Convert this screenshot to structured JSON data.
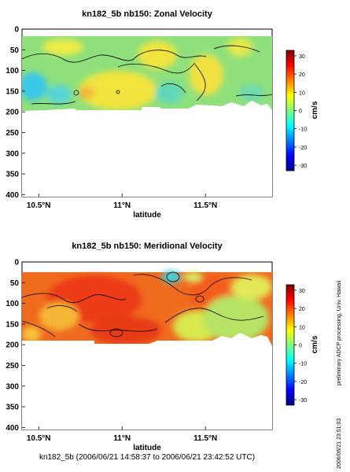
{
  "chart_data": [
    {
      "type": "heatmap",
      "title": "kn182_5b nb150: Zonal Velocity",
      "xlabel": "latitude",
      "ylabel": "",
      "x_ticks": [
        "10.5°N",
        "11°N",
        "11.5°N"
      ],
      "x_tick_values": [
        10.5,
        11.0,
        11.5
      ],
      "xlim": [
        10.4,
        11.9
      ],
      "y_ticks": [
        0,
        50,
        100,
        150,
        200,
        250,
        300,
        350,
        400
      ],
      "ylim": [
        0,
        405
      ],
      "y_reversed": true,
      "colorbar_label": "cm/s",
      "colorbar_ticks": [
        30,
        20,
        10,
        0,
        -10,
        -20,
        -30
      ],
      "clim": [
        -33,
        33
      ],
      "grid": false,
      "data_coverage_depth": [
        25,
        200
      ]
    },
    {
      "type": "heatmap",
      "title": "kn182_5b nb150: Meridional Velocity",
      "xlabel": "latitude",
      "ylabel": "",
      "x_ticks": [
        "10.5°N",
        "11°N",
        "11.5°N"
      ],
      "x_tick_values": [
        10.5,
        11.0,
        11.5
      ],
      "xlim": [
        10.4,
        11.9
      ],
      "y_ticks": [
        0,
        50,
        100,
        150,
        200,
        250,
        300,
        350,
        400
      ],
      "ylim": [
        0,
        405
      ],
      "y_reversed": true,
      "colorbar_label": "cm/s",
      "colorbar_ticks": [
        30,
        20,
        10,
        0,
        -10,
        -20,
        -30
      ],
      "clim": [
        -33,
        33
      ],
      "grid": false,
      "data_coverage_depth": [
        25,
        200
      ]
    }
  ],
  "side_note": "preliminary ADCP processing,  Univ. Hawaii",
  "timestamp": "2006/06/21 23:51:03",
  "footer": "kn182_5b (2006/06/21 14:58:37 to 2006/06/21 23:42:52 UTC)"
}
